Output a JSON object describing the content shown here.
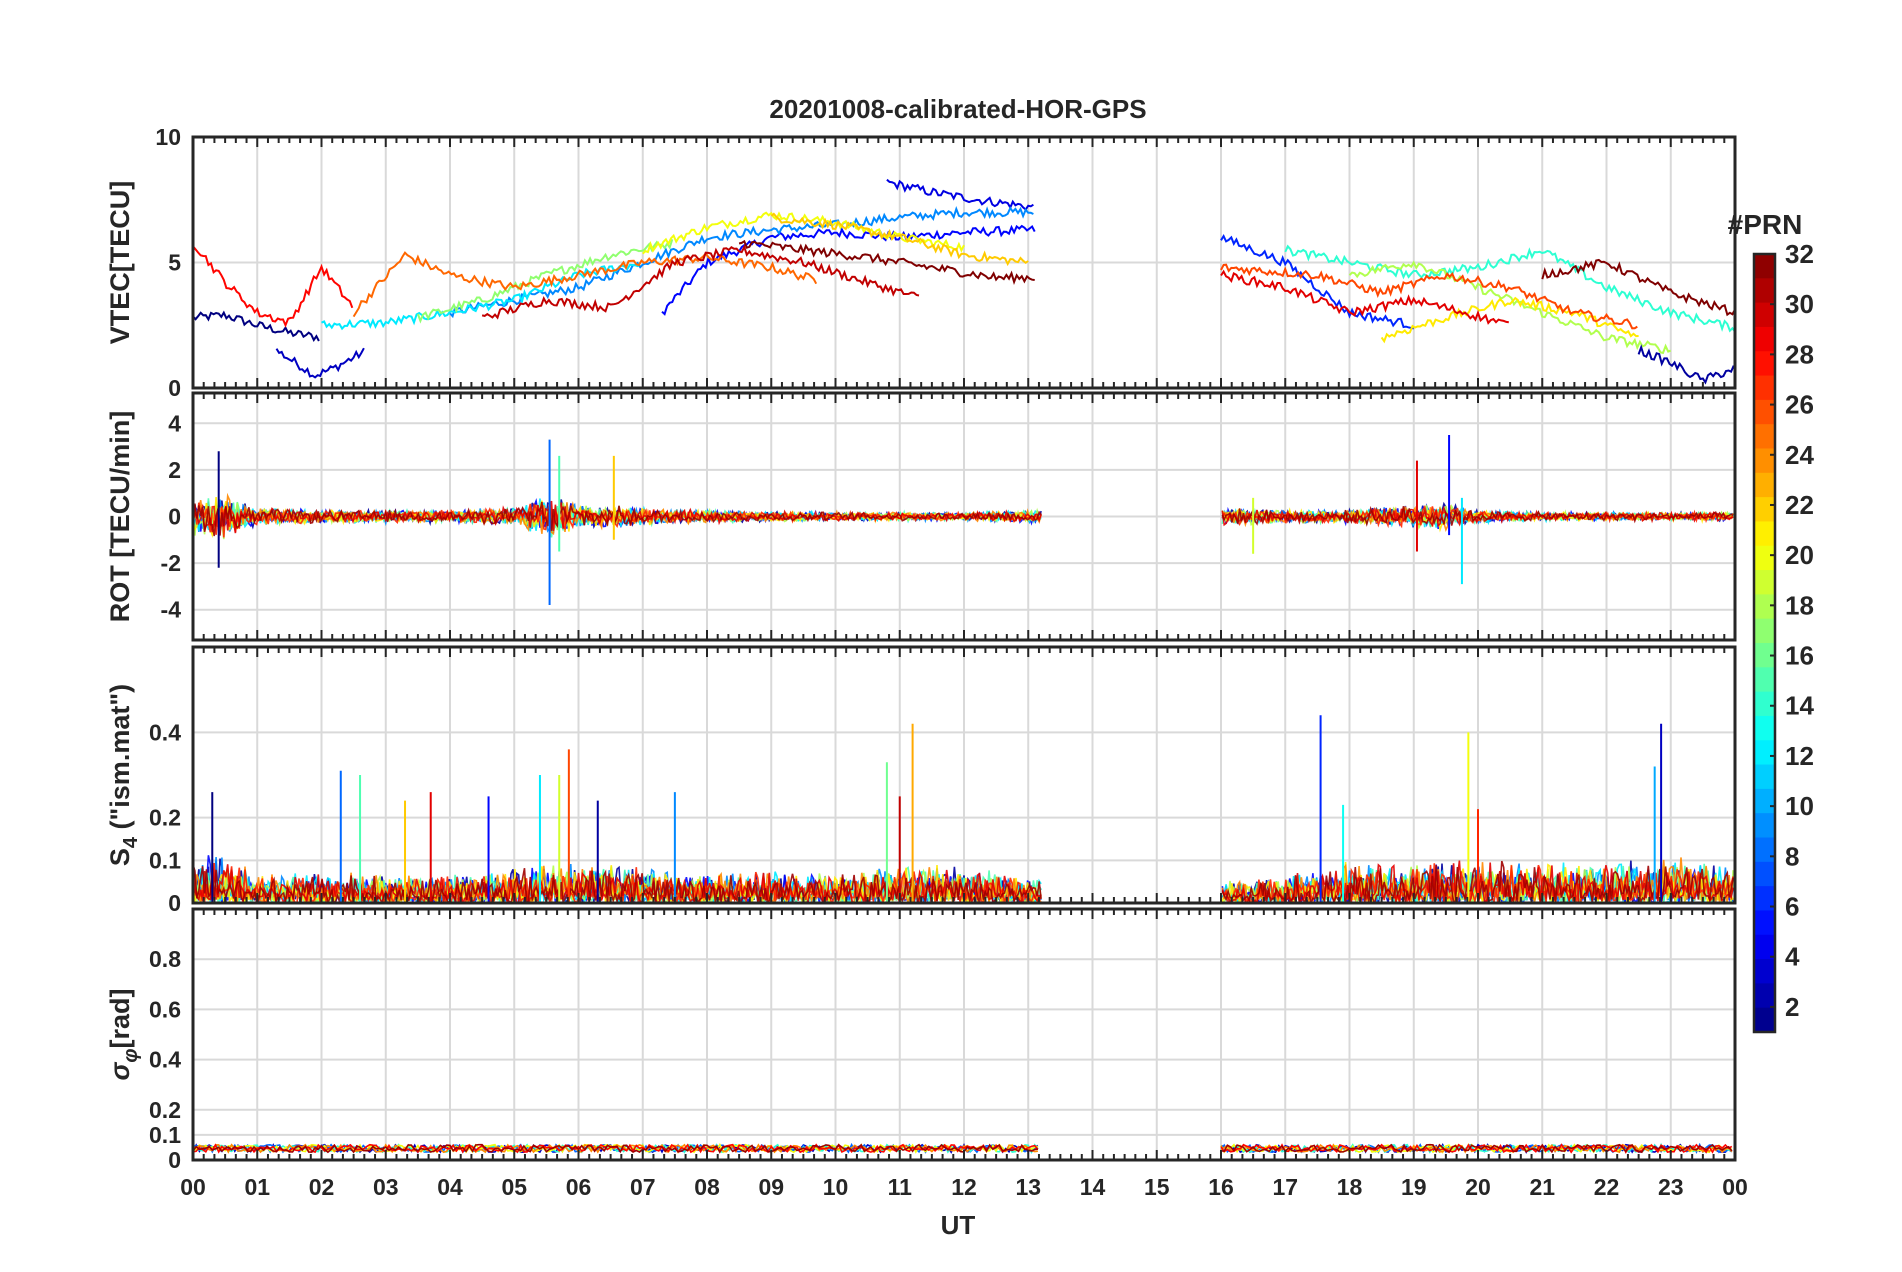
{
  "chart_data": {
    "type": "line",
    "title": "20201008-calibrated-HOR-GPS",
    "xlabel": "UT",
    "x_ticks": [
      "00",
      "01",
      "02",
      "03",
      "04",
      "05",
      "06",
      "07",
      "08",
      "09",
      "10",
      "11",
      "12",
      "13",
      "14",
      "15",
      "16",
      "17",
      "18",
      "19",
      "20",
      "21",
      "22",
      "23",
      "00"
    ],
    "xlim": [
      0,
      24
    ],
    "data_gap_hours": [
      13.2,
      16.0
    ],
    "colorbar": {
      "title": "#PRN",
      "range": [
        1,
        32
      ],
      "ticks": [
        "2",
        "4",
        "6",
        "8",
        "10",
        "12",
        "14",
        "16",
        "18",
        "20",
        "22",
        "24",
        "26",
        "28",
        "30",
        "32"
      ],
      "colormap": "jet"
    },
    "panels": [
      {
        "name": "vtec",
        "ylabel": "VTEC[TECU]",
        "ylim": [
          0,
          10
        ],
        "yticks": [
          0,
          5,
          10
        ],
        "yticklabels": [
          "0",
          "5",
          "10"
        ],
        "series": [
          {
            "prn": 1,
            "x": [
              0.0,
              0.5,
              1.0,
              1.5,
              2.0
            ],
            "y": [
              2.8,
              2.9,
              2.5,
              2.2,
              2.0
            ]
          },
          {
            "prn": 3,
            "x": [
              1.3,
              1.6,
              1.9,
              2.2,
              2.7
            ],
            "y": [
              1.5,
              1.0,
              0.5,
              0.8,
              1.5
            ]
          },
          {
            "prn": 5,
            "x": [
              7.3,
              8.0,
              9.0,
              10.0,
              11.0,
              12.0,
              13.1
            ],
            "y": [
              3.0,
              5.0,
              6.0,
              6.2,
              6.0,
              6.2,
              6.3
            ]
          },
          {
            "prn": 4,
            "x": [
              10.8,
              11.5,
              12.2,
              13.1
            ],
            "y": [
              8.2,
              7.8,
              7.5,
              7.2
            ]
          },
          {
            "prn": 9,
            "x": [
              4.0,
              5.0,
              6.0,
              7.0,
              8.0,
              9.0,
              10.0,
              11.0,
              12.0,
              13.1
            ],
            "y": [
              3.0,
              3.5,
              4.0,
              5.0,
              6.0,
              6.3,
              6.5,
              6.8,
              7.0,
              7.0
            ]
          },
          {
            "prn": 12,
            "x": [
              2.0,
              3.0,
              4.0,
              5.0,
              6.0,
              7.0
            ],
            "y": [
              2.5,
              2.6,
              3.0,
              3.5,
              4.5,
              5.0
            ]
          },
          {
            "prn": 17,
            "x": [
              3.5,
              4.5,
              5.5,
              6.5,
              7.5
            ],
            "y": [
              2.8,
              3.5,
              4.5,
              5.3,
              5.8
            ]
          },
          {
            "prn": 20,
            "x": [
              7.0,
              8.0,
              9.0,
              10.0,
              11.0,
              12.0
            ],
            "y": [
              5.5,
              6.4,
              6.9,
              6.6,
              6.0,
              5.6
            ]
          },
          {
            "prn": 22,
            "x": [
              9.0,
              10.0,
              11.0,
              12.0,
              13.0
            ],
            "y": [
              6.8,
              6.5,
              6.0,
              5.3,
              5.0
            ]
          },
          {
            "prn": 25,
            "x": [
              2.5,
              3.3,
              4.0,
              5.0,
              6.0,
              7.0,
              8.0,
              9.0,
              9.7
            ],
            "y": [
              3.0,
              5.3,
              4.5,
              4.0,
              4.5,
              5.0,
              5.2,
              4.8,
              4.3
            ]
          },
          {
            "prn": 28,
            "x": [
              0.0,
              0.5,
              1.0,
              1.5,
              2.0,
              2.5
            ],
            "y": [
              5.8,
              4.2,
              3.0,
              2.6,
              4.8,
              3.2
            ]
          },
          {
            "prn": 30,
            "x": [
              4.5,
              5.5,
              6.5,
              7.5,
              8.5,
              9.5,
              10.5,
              11.3
            ],
            "y": [
              2.8,
              3.5,
              3.2,
              5.0,
              5.5,
              5.0,
              4.2,
              3.6
            ]
          },
          {
            "prn": 32,
            "x": [
              8.5,
              9.5,
              10.5,
              11.5,
              12.5,
              13.1
            ],
            "y": [
              5.8,
              5.5,
              5.2,
              4.8,
              4.4,
              4.4
            ]
          },
          {
            "prn": 6,
            "x": [
              16.0,
              17.0,
              17.5,
              18.0,
              19.0
            ],
            "y": [
              6.0,
              5.0,
              4.0,
              3.0,
              2.5
            ]
          },
          {
            "prn": 14,
            "x": [
              17.0,
              18.0,
              19.0,
              20.0,
              21.0,
              22.0,
              23.0,
              24.0
            ],
            "y": [
              5.5,
              5.0,
              4.5,
              4.8,
              5.5,
              4.0,
              3.0,
              2.4
            ]
          },
          {
            "prn": 18,
            "x": [
              18.0,
              19.0,
              20.0,
              21.0,
              22.0,
              23.0
            ],
            "y": [
              4.5,
              5.0,
              4.0,
              3.0,
              2.0,
              1.5
            ]
          },
          {
            "prn": 21,
            "x": [
              18.5,
              19.5,
              20.5,
              21.5,
              22.5
            ],
            "y": [
              2.0,
              2.8,
              3.5,
              3.0,
              2.0
            ]
          },
          {
            "prn": 26,
            "x": [
              16.0,
              17.5,
              18.5,
              19.5,
              20.5,
              21.5,
              22.5
            ],
            "y": [
              4.8,
              4.5,
              3.8,
              4.5,
              4.0,
              3.0,
              2.5
            ]
          },
          {
            "prn": 29,
            "x": [
              16.0,
              17.0,
              18.0,
              19.0,
              19.8,
              20.5
            ],
            "y": [
              4.5,
              4.0,
              3.0,
              3.5,
              3.0,
              2.5
            ]
          },
          {
            "prn": 32,
            "x": [
              21.0,
              22.0,
              23.0,
              24.0
            ],
            "y": [
              4.5,
              5.0,
              3.8,
              3.0
            ]
          },
          {
            "prn": 2,
            "x": [
              22.5,
              23.0,
              23.5,
              24.0
            ],
            "y": [
              1.5,
              1.0,
              0.3,
              0.8
            ]
          }
        ]
      },
      {
        "name": "rot",
        "ylabel": "ROT [TECU/min]",
        "ylim": [
          -5.3,
          5.3
        ],
        "yticks": [
          -4,
          -2,
          0,
          2,
          4
        ],
        "yticklabels": [
          "-4",
          "-2",
          "0",
          "2",
          "4"
        ],
        "envelope": {
          "x": [
            0.0,
            0.5,
            1.0,
            2.0,
            3.0,
            4.0,
            5.0,
            5.5,
            6.0,
            6.5,
            7.0,
            8.0,
            10.0,
            12.0,
            13.2,
            16.0,
            17.0,
            18.0,
            18.8,
            19.5,
            20.0,
            21.0,
            23.0,
            24.0
          ],
          "amp": [
            0.9,
            1.0,
            0.4,
            0.3,
            0.3,
            0.3,
            0.4,
            1.0,
            0.6,
            0.5,
            0.4,
            0.3,
            0.2,
            0.2,
            0.3,
            0.4,
            0.3,
            0.3,
            0.5,
            0.6,
            0.3,
            0.2,
            0.2,
            0.2
          ]
        },
        "spikes": [
          {
            "x": 0.4,
            "ymin": -2.2,
            "ymax": 2.8
          },
          {
            "x": 5.55,
            "ymin": -3.8,
            "ymax": 3.3
          },
          {
            "x": 5.7,
            "ymin": -1.5,
            "ymax": 2.6
          },
          {
            "x": 6.55,
            "ymin": -1.0,
            "ymax": 2.6
          },
          {
            "x": 19.05,
            "ymin": -1.5,
            "ymax": 2.4
          },
          {
            "x": 19.55,
            "ymin": -0.8,
            "ymax": 3.5
          },
          {
            "x": 19.75,
            "ymin": -2.9,
            "ymax": 0.8
          },
          {
            "x": 16.5,
            "ymin": -1.6,
            "ymax": 0.8
          }
        ]
      },
      {
        "name": "s4",
        "ylabel": "S4 (\"ism.mat\")",
        "ylim": [
          0,
          0.6
        ],
        "yticks": [
          0,
          0.1,
          0.2,
          0.4
        ],
        "yticklabels": [
          "0",
          "0.1",
          "0.2",
          "0.4"
        ],
        "envelope": {
          "x": [
            0.0,
            0.5,
            1.0,
            2.0,
            3.0,
            4.0,
            5.0,
            6.0,
            7.0,
            8.0,
            9.0,
            10.0,
            11.0,
            12.0,
            13.2,
            16.0,
            17.0,
            18.0,
            19.0,
            20.0,
            21.0,
            22.0,
            23.0,
            24.0
          ],
          "amp": [
            0.12,
            0.12,
            0.07,
            0.08,
            0.07,
            0.07,
            0.09,
            0.1,
            0.09,
            0.07,
            0.08,
            0.07,
            0.1,
            0.09,
            0.06,
            0.05,
            0.07,
            0.1,
            0.1,
            0.11,
            0.1,
            0.1,
            0.12,
            0.09
          ]
        },
        "spikes": [
          {
            "x": 0.3,
            "ymax": 0.26
          },
          {
            "x": 2.3,
            "ymax": 0.31
          },
          {
            "x": 2.6,
            "ymax": 0.3
          },
          {
            "x": 3.3,
            "ymax": 0.24
          },
          {
            "x": 3.7,
            "ymax": 0.26
          },
          {
            "x": 4.6,
            "ymax": 0.25
          },
          {
            "x": 5.4,
            "ymax": 0.3
          },
          {
            "x": 5.7,
            "ymax": 0.3
          },
          {
            "x": 5.85,
            "ymax": 0.36
          },
          {
            "x": 6.3,
            "ymax": 0.24
          },
          {
            "x": 7.5,
            "ymax": 0.26
          },
          {
            "x": 10.8,
            "ymax": 0.33
          },
          {
            "x": 11.2,
            "ymax": 0.42
          },
          {
            "x": 11.0,
            "ymax": 0.25
          },
          {
            "x": 17.55,
            "ymax": 0.44
          },
          {
            "x": 17.9,
            "ymax": 0.23
          },
          {
            "x": 19.85,
            "ymax": 0.4
          },
          {
            "x": 20.0,
            "ymax": 0.22
          },
          {
            "x": 22.85,
            "ymax": 0.42
          },
          {
            "x": 22.75,
            "ymax": 0.32
          }
        ]
      },
      {
        "name": "sigma-phi",
        "ylabel": "σφ[rad]",
        "ylim": [
          0,
          1.0
        ],
        "yticks": [
          0,
          0.1,
          0.2,
          0.4,
          0.6,
          0.8
        ],
        "yticklabels": [
          "0",
          "0.1",
          "0.2",
          "0.4",
          "0.6",
          "0.8"
        ],
        "baseline": 0.04,
        "envelope_amp": 0.03
      }
    ]
  }
}
